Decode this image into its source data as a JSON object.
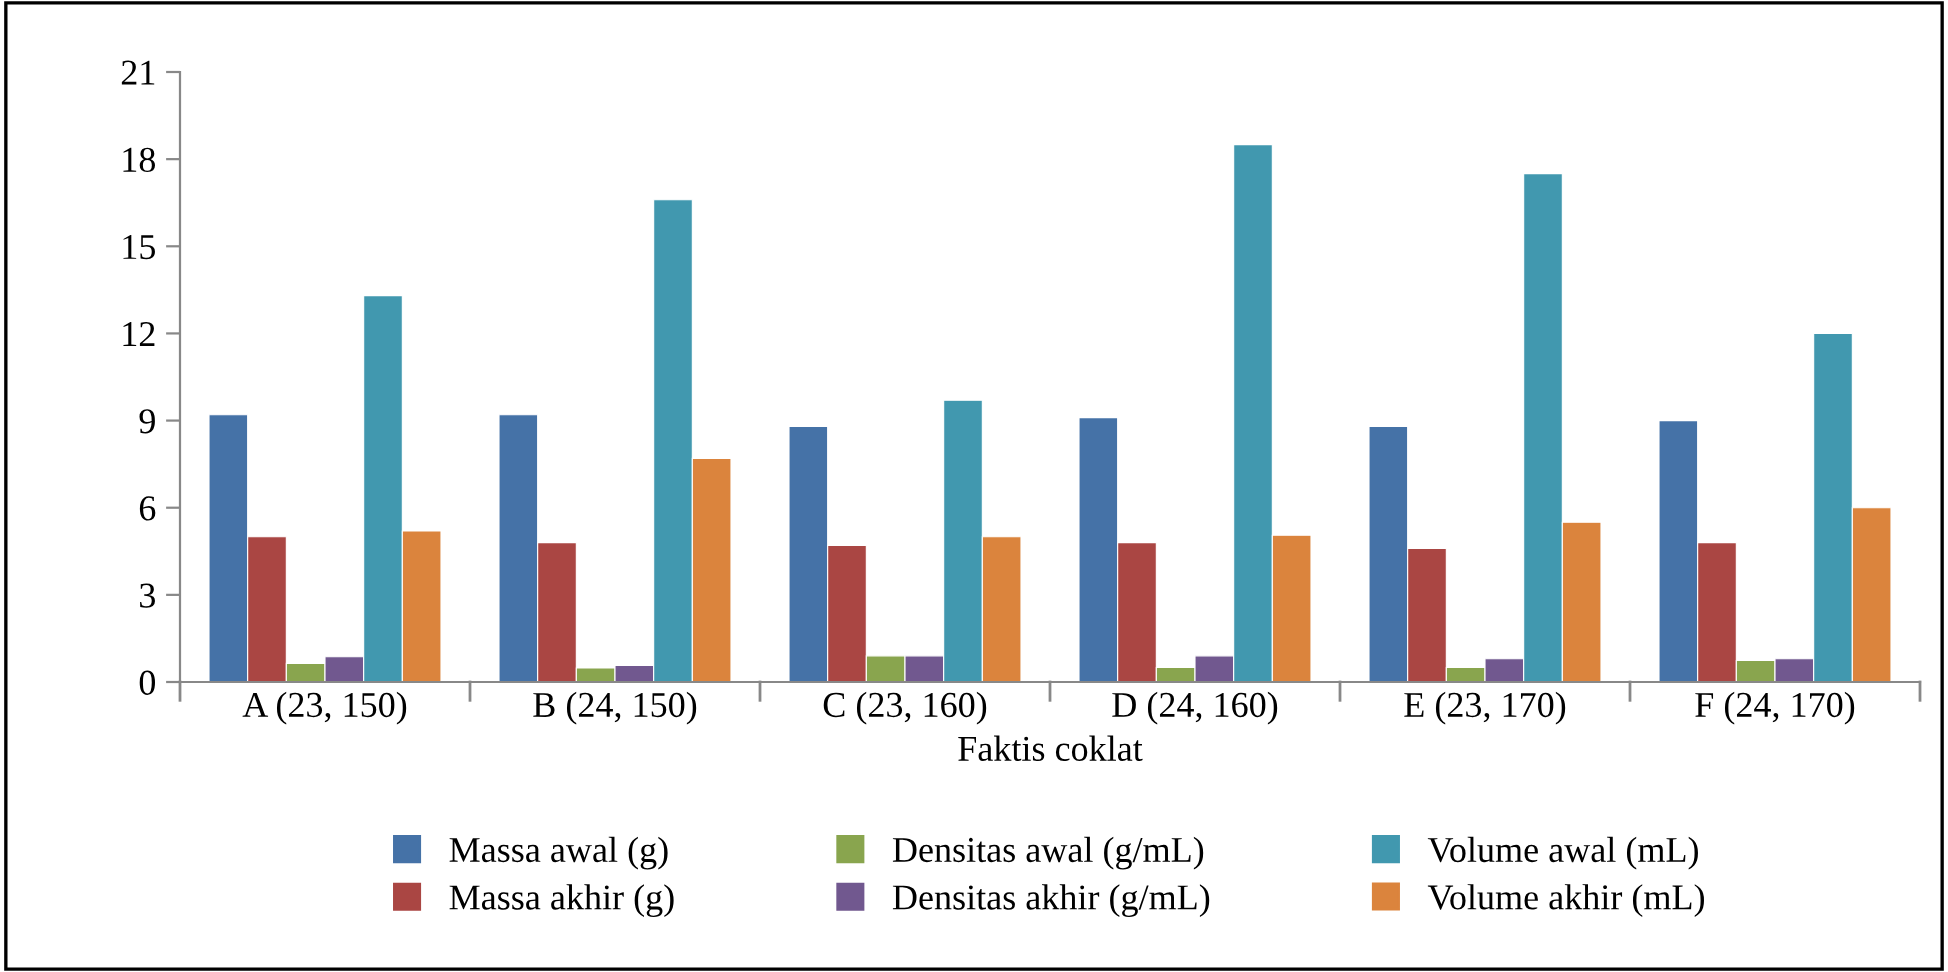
{
  "chart_data": {
    "type": "bar",
    "xlabel": "Faktis coklat",
    "categories": [
      "A (23, 150)",
      "B (24, 150)",
      "C (23, 160)",
      "D (24, 160)",
      "E (23, 170)",
      "F (24, 170)"
    ],
    "series": [
      {
        "name": "Massa awal (g)",
        "color": "#4572a7",
        "values": [
          9.2,
          9.2,
          8.8,
          9.1,
          8.8,
          9.0
        ]
      },
      {
        "name": "Massa akhir (g)",
        "color": "#aa4643",
        "values": [
          5.0,
          4.8,
          4.7,
          4.8,
          4.6,
          4.8
        ]
      },
      {
        "name": "Densitas awal (g/mL)",
        "color": "#89a54e",
        "values": [
          0.64,
          0.48,
          0.9,
          0.5,
          0.5,
          0.74
        ]
      },
      {
        "name": "Densitas akhir (g/mL)",
        "color": "#71588f",
        "values": [
          0.87,
          0.57,
          0.9,
          0.9,
          0.8,
          0.8
        ]
      },
      {
        "name": "Volume awal (mL)",
        "color": "#4198af",
        "values": [
          13.3,
          16.6,
          9.7,
          18.5,
          17.5,
          12.0
        ]
      },
      {
        "name": "Volume akhir (mL)",
        "color": "#db843d",
        "values": [
          5.2,
          7.7,
          5.0,
          5.05,
          5.5,
          6.0
        ]
      }
    ],
    "ylim": [
      0,
      21
    ],
    "yticks": [
      0,
      3,
      6,
      9,
      12,
      15,
      18,
      21
    ],
    "grid": false,
    "legend": "bottom"
  }
}
